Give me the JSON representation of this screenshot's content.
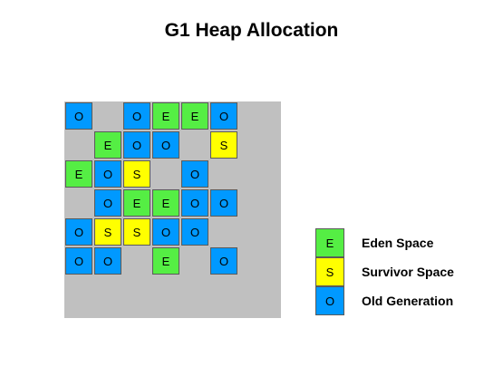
{
  "title": "G1 Heap Allocation",
  "colors": {
    "eden": "#55ee44",
    "survivor": "#ffff00",
    "old": "#0099ff",
    "free": "#c0c0c0"
  },
  "symbols": {
    "eden": "E",
    "survivor": "S",
    "old": "O"
  },
  "heap_grid": [
    [
      "old",
      "free",
      "old",
      "eden",
      "eden",
      "old",
      "free",
      "free"
    ],
    [
      "free",
      "eden",
      "old",
      "old",
      "free",
      "survivor",
      "free",
      "free"
    ],
    [
      "eden",
      "old",
      "survivor",
      "free",
      "old",
      "free",
      "free",
      "free"
    ],
    [
      "free",
      "old",
      "eden",
      "eden",
      "old",
      "old",
      "free",
      "free"
    ],
    [
      "old",
      "survivor",
      "survivor",
      "old",
      "old",
      "free",
      "free",
      "free"
    ],
    [
      "old",
      "old",
      "free",
      "eden",
      "free",
      "old",
      "free",
      "free"
    ],
    [
      "free",
      "free",
      "free",
      "free",
      "free",
      "free",
      "free",
      "free"
    ],
    [
      "free",
      "free",
      "free",
      "free",
      "free",
      "free",
      "free",
      "free"
    ]
  ],
  "legend": [
    {
      "type": "eden",
      "symbol": "E",
      "label": "Eden Space"
    },
    {
      "type": "survivor",
      "symbol": "S",
      "label": "Survivor Space"
    },
    {
      "type": "old",
      "symbol": "O",
      "label": "Old Generation"
    }
  ]
}
